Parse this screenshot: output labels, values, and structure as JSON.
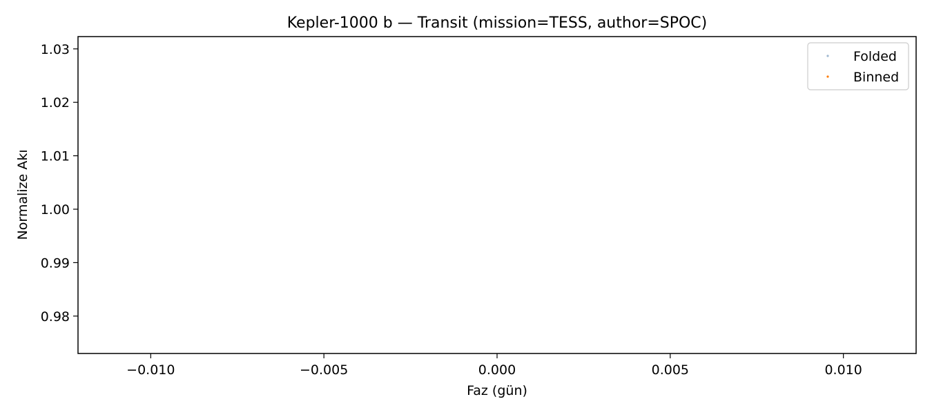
{
  "chart_data": {
    "type": "scatter",
    "title": "Kepler-1000 b — Transit (mission=TESS, author=SPOC)",
    "xlabel": "Faz (gün)",
    "ylabel": "Normalize Akı",
    "xlim": [
      -0.0121,
      0.0121
    ],
    "ylim": [
      0.973,
      1.0323
    ],
    "x_ticks": [
      -0.01,
      -0.005,
      0.0,
      0.005,
      0.01
    ],
    "x_tick_labels": [
      "−0.010",
      "−0.005",
      "0.000",
      "0.005",
      "0.010"
    ],
    "y_ticks": [
      0.98,
      0.99,
      1.0,
      1.01,
      1.02,
      1.03
    ],
    "y_tick_labels": [
      "0.98",
      "0.99",
      "1.00",
      "1.01",
      "1.02",
      "1.03"
    ],
    "grid": false,
    "legend_position": "top-right",
    "series": [
      {
        "name": "Folded",
        "color": "#9fb8d0",
        "marker": "point",
        "points": []
      },
      {
        "name": "Binned",
        "color": "#ff7f0e",
        "marker": "point",
        "points": []
      }
    ]
  }
}
